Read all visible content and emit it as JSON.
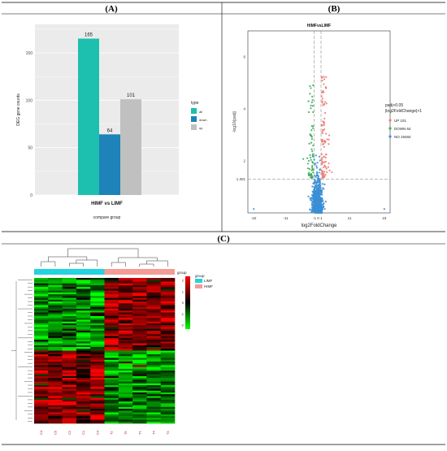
{
  "colors": {
    "all": "#1dbfae",
    "down": "#1d83b8",
    "nosig": "#c0c0c0",
    "volcano_up": "#f07a72",
    "volcano_down": "#3aae5a",
    "volcano_no": "#3b8fd6",
    "heat_high": "#ff0000",
    "heat_mid": "#000000",
    "heat_low": "#00ff00",
    "group_limf": "#22d3e0",
    "group_himf": "#f49b95"
  },
  "panels": {
    "a": {
      "label": "(A)"
    },
    "b": {
      "label": "(B)"
    },
    "c": {
      "label": "(C)"
    }
  },
  "chart_data": [
    {
      "type": "bar",
      "panel": "A",
      "categories": [
        "HIMF vs LIMF"
      ],
      "series": [
        {
          "name": "all",
          "values": [
            165
          ]
        },
        {
          "name": "down",
          "values": [
            64
          ]
        },
        {
          "name": "up",
          "values": [
            101
          ]
        }
      ],
      "data_labels": [
        "165",
        "64",
        "101"
      ],
      "xlabel": "compare group",
      "ylabel": "DEG gene counts",
      "ylim": [
        0,
        180
      ],
      "yticks": [
        0,
        50,
        100,
        150
      ],
      "legend_title": "type",
      "legend_entries": [
        "all",
        "down",
        "up"
      ],
      "legend_position": "right",
      "grid": true
    },
    {
      "type": "scatter",
      "panel": "B",
      "title": "HIMFvsLIMF",
      "xlabel": "log2FoldChange",
      "ylabel": "-log10(padj)",
      "xticks": [
        "-22",
        "-11",
        "-1 0 1",
        "11",
        "23"
      ],
      "yticks": [
        "1.301",
        "2",
        "4",
        "6"
      ],
      "xlim": [
        -24,
        25
      ],
      "ylim": [
        0,
        7
      ],
      "threshold_y": 1.301,
      "threshold_x": [
        -1,
        1
      ],
      "legend_title": "padj<0.05 |log2FoldChange|>1",
      "legend_position": "right",
      "series": [
        {
          "name": "UP 101",
          "key": "up"
        },
        {
          "name": "DOWN 64",
          "key": "down"
        },
        {
          "name": "NO 19484",
          "key": "no"
        }
      ]
    },
    {
      "type": "heatmap",
      "panel": "C",
      "columns": [
        "C4",
        "C5",
        "C2",
        "C1",
        "C3",
        "T2",
        "T5",
        "T1",
        "T4",
        "T3"
      ],
      "groups": [
        {
          "name": "LIMF",
          "count": 5
        },
        {
          "name": "HIMF",
          "count": 5
        }
      ],
      "annotation_title": "group",
      "legend_title": "group",
      "colorbar_ticks": [
        "2",
        "1",
        "0",
        "-1",
        "-2"
      ],
      "row_count": 165
    }
  ]
}
